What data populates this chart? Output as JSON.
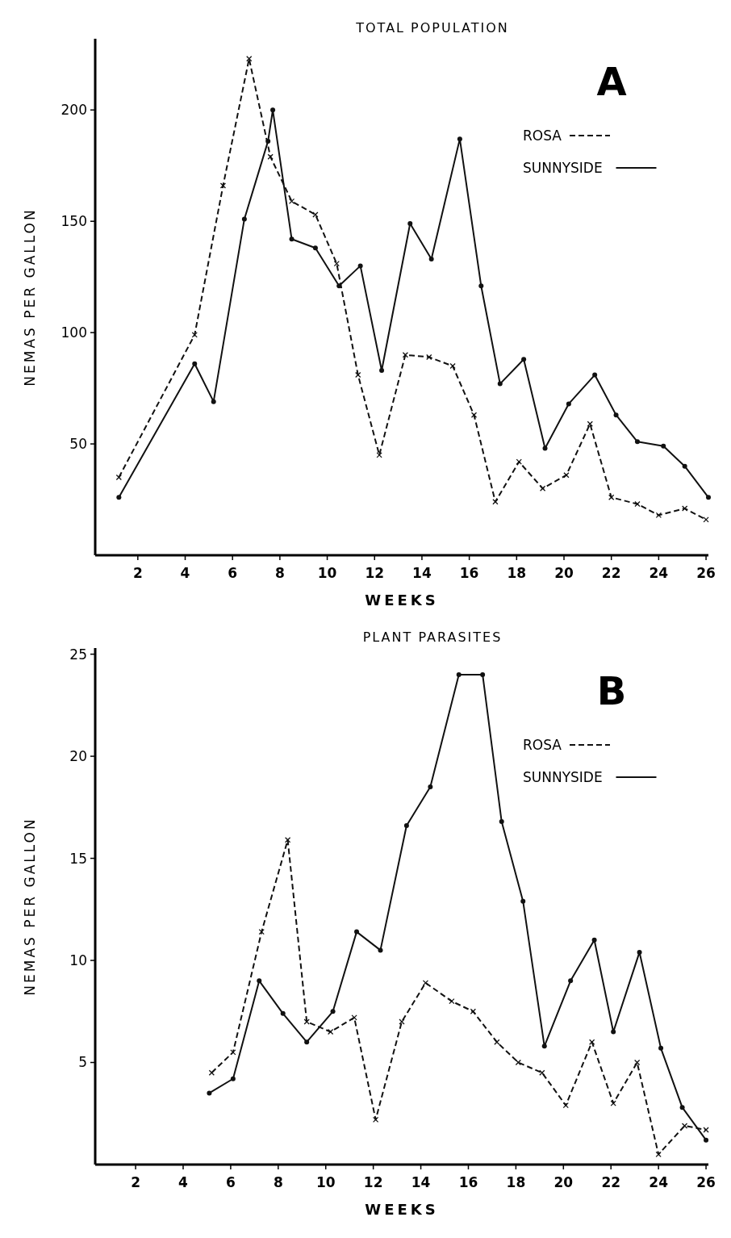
{
  "chart_data": [
    {
      "type": "line",
      "title": "TOTAL POPULATION",
      "xlabel": "WEEKS",
      "ylabel": "NEMAS PER GALLON",
      "annotations": [
        "A"
      ],
      "xlim": [
        0.2,
        26.1
      ],
      "xticks": [
        2,
        4,
        6,
        8,
        10,
        12,
        14,
        16,
        18,
        20,
        22,
        24,
        26
      ],
      "ylim": [
        0,
        232
      ],
      "yticks": [
        50,
        100,
        150,
        200
      ],
      "grid": false,
      "legend": "top right",
      "series": [
        {
          "name": "ROSA",
          "color": "#111111",
          "line_style": "dashed",
          "marker": "cross",
          "x": [
            1.2,
            4.4,
            5.6,
            6.7,
            7.6,
            8.5,
            9.5,
            10.4,
            11.3,
            12.2,
            13.3,
            14.3,
            15.3,
            16.2,
            17.1,
            18.1,
            19.1,
            20.1,
            21.1,
            22.0,
            23.1,
            24.0,
            25.1,
            26.0
          ],
          "values": [
            35,
            99,
            166,
            223,
            179,
            159,
            153,
            131,
            81,
            45,
            90,
            89,
            85,
            63,
            24,
            42,
            30,
            36,
            59,
            26,
            23,
            18,
            21,
            16
          ]
        },
        {
          "name": "SUNNYSIDE",
          "color": "#111111",
          "line_style": "solid",
          "marker": "circle",
          "x": [
            1.2,
            4.4,
            5.2,
            6.5,
            7.5,
            7.7,
            8.5,
            9.5,
            10.5,
            11.4,
            12.3,
            13.5,
            14.4,
            15.6,
            16.5,
            17.3,
            18.3,
            19.2,
            20.2,
            21.3,
            22.2,
            23.1,
            24.2,
            25.1,
            26.1
          ],
          "values": [
            26,
            86,
            69,
            151,
            186,
            200,
            142,
            138,
            121,
            130,
            83,
            149,
            133,
            187,
            121,
            77,
            88,
            48,
            68,
            81,
            63,
            51,
            49,
            40,
            26
          ]
        }
      ]
    },
    {
      "type": "line",
      "title": "PLANT PARASITES",
      "xlabel": "WEEKS",
      "ylabel": "NEMAS PER GALLON",
      "annotations": [
        "B"
      ],
      "xlim": [
        0.3,
        26.1
      ],
      "xticks": [
        2,
        4,
        6,
        8,
        10,
        12,
        14,
        16,
        18,
        20,
        22,
        24,
        26
      ],
      "ylim": [
        0,
        25.3
      ],
      "yticks": [
        5,
        10,
        15,
        20,
        25
      ],
      "grid": false,
      "legend": "top right",
      "series": [
        {
          "name": "ROSA",
          "color": "#111111",
          "line_style": "dashed",
          "marker": "cross",
          "x": [
            5.2,
            6.1,
            7.3,
            8.4,
            9.2,
            10.2,
            11.2,
            12.1,
            13.2,
            14.2,
            15.3,
            16.2,
            17.2,
            18.1,
            19.1,
            20.1,
            21.2,
            22.1,
            23.1,
            24.0,
            25.1,
            26.0
          ],
          "values": [
            4.5,
            5.5,
            11.4,
            15.9,
            7.0,
            6.5,
            7.2,
            2.2,
            7.0,
            8.9,
            8.0,
            7.5,
            6.0,
            5.0,
            4.5,
            2.9,
            6.0,
            3.0,
            5.0,
            0.5,
            1.9,
            1.7
          ]
        },
        {
          "name": "SUNNYSIDE",
          "color": "#111111",
          "line_style": "solid",
          "marker": "circle",
          "x": [
            5.1,
            6.1,
            7.2,
            8.2,
            9.2,
            10.3,
            11.3,
            12.3,
            13.4,
            14.4,
            15.6,
            16.6,
            17.4,
            18.3,
            19.2,
            20.3,
            21.3,
            22.1,
            23.2,
            24.1,
            25.0,
            26.0
          ],
          "values": [
            3.5,
            4.2,
            9.0,
            7.4,
            6.0,
            7.5,
            11.4,
            10.5,
            16.6,
            18.5,
            24.0,
            24.0,
            16.8,
            12.9,
            5.8,
            9.0,
            11.0,
            6.5,
            10.4,
            5.7,
            2.8,
            1.2
          ]
        }
      ]
    }
  ]
}
